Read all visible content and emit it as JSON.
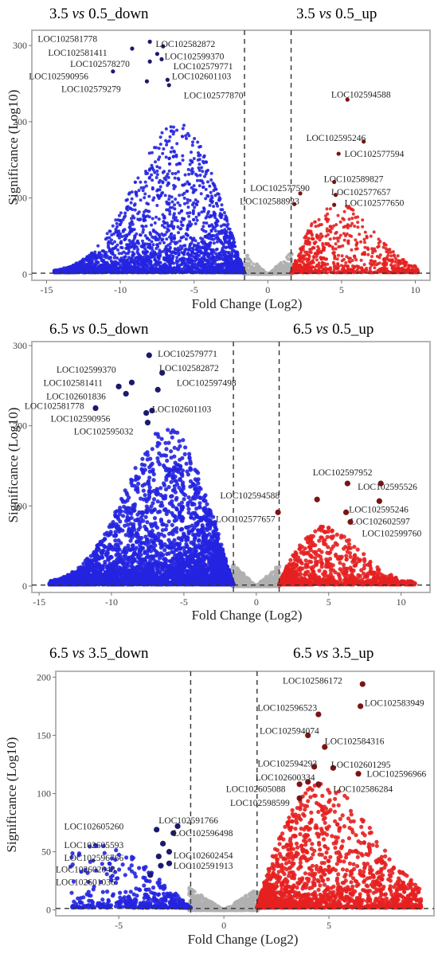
{
  "chart_data": [
    {
      "type": "scatter",
      "title_left": {
        "a": "3.5 ",
        "vs": "vs",
        "b": " 0.5_down"
      },
      "title_right": {
        "a": "3.5 ",
        "vs": "vs",
        "b": " 0.5_up"
      },
      "xlabel": "Fold Change (Log2)",
      "ylabel": "Significance (Log10)",
      "xlim": [
        -16,
        11
      ],
      "ylim": [
        -8,
        320
      ],
      "xticks": [
        -15,
        -10,
        -5,
        0,
        5,
        10
      ],
      "yticks": [
        0,
        100,
        200,
        300
      ],
      "fc_threshold": [
        -1.58,
        1.58
      ],
      "p_threshold": 1.3,
      "colors": {
        "down": "#2323e0",
        "up": "#e62020",
        "ns": "#b0b0b0",
        "labeled_down": "#1a1a6e",
        "labeled_up": "#7a1515"
      },
      "labeled_points": [
        {
          "label": "LOC102581778",
          "x": -8.0,
          "y": 305,
          "dir": "down",
          "lx": -15.6,
          "ly": 309
        },
        {
          "label": "LOC102582872",
          "x": -7.1,
          "y": 299,
          "dir": "down",
          "lx": -7.6,
          "ly": 302
        },
        {
          "label": "LOC102581411",
          "x": -9.2,
          "y": 296,
          "dir": "down",
          "lx": -14.9,
          "ly": 291
        },
        {
          "label": "LOC102599370",
          "x": -7.5,
          "y": 289,
          "dir": "down",
          "lx": -7.0,
          "ly": 286
        },
        {
          "label": "LOC102579771",
          "x": -7.2,
          "y": 282,
          "dir": "down",
          "lx": -6.4,
          "ly": 273
        },
        {
          "label": "LOC102578270",
          "x": -8.0,
          "y": 279,
          "dir": "down",
          "lx": -13.4,
          "ly": 276
        },
        {
          "label": "LOC102590956",
          "x": -10.5,
          "y": 266,
          "dir": "down",
          "lx": -16.2,
          "ly": 260
        },
        {
          "label": "LOC102601103",
          "x": -6.8,
          "y": 255,
          "dir": "down",
          "lx": -6.5,
          "ly": 260
        },
        {
          "label": "LOC102579279",
          "x": -8.2,
          "y": 253,
          "dir": "down",
          "lx": -14.0,
          "ly": 243
        },
        {
          "label": "LOC102577870",
          "x": -6.7,
          "y": 248,
          "dir": "down",
          "lx": -5.7,
          "ly": 235
        },
        {
          "label": "LOC102594588",
          "x": 5.4,
          "y": 229,
          "dir": "up",
          "lx": 4.3,
          "ly": 236
        },
        {
          "label": "LOC102595246",
          "x": 6.5,
          "y": 174,
          "dir": "up",
          "lx": 2.6,
          "ly": 179
        },
        {
          "label": "LOC102577594",
          "x": 4.8,
          "y": 158,
          "dir": "up",
          "lx": 5.2,
          "ly": 158
        },
        {
          "label": "LOC102589827",
          "x": 4.5,
          "y": 121,
          "dir": "up",
          "lx": 3.8,
          "ly": 125
        },
        {
          "label": "LOC102577590",
          "x": 2.2,
          "y": 106,
          "dir": "up",
          "lx": -1.2,
          "ly": 113
        },
        {
          "label": "LOC102577657",
          "x": 4.6,
          "y": 104,
          "dir": "up",
          "lx": 4.3,
          "ly": 108
        },
        {
          "label": "LOC102588923",
          "x": 1.8,
          "y": 92,
          "dir": "up",
          "lx": -1.9,
          "ly": 96
        },
        {
          "label": "LOC102577650",
          "x": 4.5,
          "y": 91,
          "dir": "up",
          "lx": 5.2,
          "ly": 94
        }
      ],
      "scatter_model": {
        "down_n": 2600,
        "up_n": 900,
        "ns_n": 520,
        "down_xmin": -14.5,
        "up_xmax": 10.2,
        "down_peak": 200,
        "up_peak": 95,
        "seed": 11
      }
    },
    {
      "type": "scatter",
      "title_left": {
        "a": "6.5 ",
        "vs": "vs",
        "b": " 0.5_down"
      },
      "title_right": {
        "a": "6.5 ",
        "vs": "vs",
        "b": " 0.5_up"
      },
      "xlabel": "Fold Change (Log2)",
      "ylabel": "Significance (Log10)",
      "xlim": [
        -15.5,
        12
      ],
      "ylim": [
        -8,
        305
      ],
      "xticks": [
        -15,
        -10,
        -5,
        0,
        5,
        10
      ],
      "yticks": [
        0,
        100,
        200,
        300
      ],
      "fc_threshold": [
        -1.58,
        1.58
      ],
      "p_threshold": 1.3,
      "colors": {
        "down": "#2323e0",
        "up": "#e62020",
        "ns": "#b0b0b0",
        "labeled_down": "#1a1a6e",
        "labeled_up": "#7a1515"
      },
      "labeled_points": [
        {
          "label": "LOC102579771",
          "x": -7.4,
          "y": 288,
          "dir": "down",
          "lx": -6.8,
          "ly": 290
        },
        {
          "label": "LOC102599370",
          "x": -8.6,
          "y": 254,
          "dir": "down",
          "lx": -13.8,
          "ly": 270
        },
        {
          "label": "LOC102582872",
          "x": -6.5,
          "y": 266,
          "dir": "down",
          "lx": -6.7,
          "ly": 272
        },
        {
          "label": "LOC102581411",
          "x": -9.5,
          "y": 249,
          "dir": "down",
          "lx": -14.7,
          "ly": 254
        },
        {
          "label": "LOC102597498",
          "x": -6.8,
          "y": 245,
          "dir": "down",
          "lx": -5.5,
          "ly": 254
        },
        {
          "label": "LOC102601836",
          "x": -9.0,
          "y": 240,
          "dir": "down",
          "lx": -14.5,
          "ly": 237
        },
        {
          "label": "LOC102581778",
          "x": -11.1,
          "y": 222,
          "dir": "down",
          "lx": -16.0,
          "ly": 225
        },
        {
          "label": "LOC102601103",
          "x": -7.2,
          "y": 219,
          "dir": "down",
          "lx": -7.2,
          "ly": 221
        },
        {
          "label": "LOC102590956",
          "x": -7.6,
          "y": 216,
          "dir": "down",
          "lx": -14.2,
          "ly": 209
        },
        {
          "label": "LOC102595032",
          "x": -7.5,
          "y": 204,
          "dir": "down",
          "lx": -12.6,
          "ly": 193
        },
        {
          "label": "LOC102597952",
          "x": 6.3,
          "y": 128,
          "dir": "up",
          "lx": 3.9,
          "ly": 142
        },
        {
          "label": "LOC102595526",
          "x": 8.6,
          "y": 128,
          "dir": "up",
          "lx": 7.0,
          "ly": 124
        },
        {
          "label": "LOC102594588",
          "x": 4.2,
          "y": 108,
          "dir": "up",
          "lx": -2.5,
          "ly": 113
        },
        {
          "label": "LOC102595246",
          "x": 8.5,
          "y": 106,
          "dir": "up",
          "lx": 6.4,
          "ly": 96
        },
        {
          "label": "LOC102577657",
          "x": 1.5,
          "y": 92,
          "dir": "up",
          "lx": -2.8,
          "ly": 84
        },
        {
          "label": "LOC102602597",
          "x": 6.2,
          "y": 92,
          "dir": "up",
          "lx": 6.5,
          "ly": 81
        },
        {
          "label": "LOC102599760",
          "x": 6.5,
          "y": 80,
          "dir": "up",
          "lx": 7.3,
          "ly": 66
        }
      ],
      "scatter_model": {
        "down_n": 3200,
        "up_n": 950,
        "ns_n": 550,
        "down_xmin": -14.3,
        "up_xmax": 11.0,
        "down_peak": 200,
        "up_peak": 75,
        "seed": 29
      }
    },
    {
      "type": "scatter",
      "title_left": {
        "a": "6.5 ",
        "vs": "vs",
        "b": " 3.5_down"
      },
      "title_right": {
        "a": "6.5 ",
        "vs": "vs",
        "b": " 3.5_up"
      },
      "xlabel": "Fold Change (Log2)",
      "ylabel": "Significance (Log10)",
      "xlim": [
        -8,
        10
      ],
      "ylim": [
        -5,
        205
      ],
      "xticks": [
        -5,
        0,
        5
      ],
      "yticks": [
        0,
        50,
        100,
        150,
        200
      ],
      "fc_threshold": [
        -1.58,
        1.58
      ],
      "p_threshold": 1.3,
      "colors": {
        "down": "#2323e0",
        "up": "#e62020",
        "ns": "#b0b0b0",
        "labeled_down": "#1a1a6e",
        "labeled_up": "#7a1515"
      },
      "labeled_points": [
        {
          "label": "LOC102586172",
          "x": 6.6,
          "y": 194,
          "dir": "up",
          "lx": 2.8,
          "ly": 197
        },
        {
          "label": "LOC102583949",
          "x": 6.5,
          "y": 175,
          "dir": "up",
          "lx": 6.7,
          "ly": 178
        },
        {
          "label": "LOC102596523",
          "x": 4.5,
          "y": 168,
          "dir": "up",
          "lx": 1.6,
          "ly": 174
        },
        {
          "label": "LOC102594074",
          "x": 4.0,
          "y": 150,
          "dir": "up",
          "lx": 1.7,
          "ly": 154
        },
        {
          "label": "LOC102584316",
          "x": 4.8,
          "y": 140,
          "dir": "up",
          "lx": 4.8,
          "ly": 145
        },
        {
          "label": "LOC102594293",
          "x": 4.3,
          "y": 123,
          "dir": "up",
          "lx": 1.6,
          "ly": 126
        },
        {
          "label": "LOC102601295",
          "x": 5.2,
          "y": 122,
          "dir": "up",
          "lx": 5.1,
          "ly": 125
        },
        {
          "label": "LOC102596966",
          "x": 6.4,
          "y": 117,
          "dir": "up",
          "lx": 6.8,
          "ly": 117
        },
        {
          "label": "LOC102600334",
          "x": 4.0,
          "y": 110,
          "dir": "up",
          "lx": 1.5,
          "ly": 114
        },
        {
          "label": "LOC102605088",
          "x": 3.6,
          "y": 108,
          "dir": "up",
          "lx": 0.1,
          "ly": 104
        },
        {
          "label": "LOC102586284",
          "x": 4.5,
          "y": 108,
          "dir": "up",
          "lx": 5.2,
          "ly": 104
        },
        {
          "label": "LOC102598599",
          "x": 3.6,
          "y": 96,
          "dir": "up",
          "lx": 0.3,
          "ly": 92
        },
        {
          "label": "LOC102605260",
          "x": -3.2,
          "y": 69,
          "dir": "down",
          "lx": -7.6,
          "ly": 72
        },
        {
          "label": "LOC102591766",
          "x": -2.2,
          "y": 72,
          "dir": "down",
          "lx": -3.1,
          "ly": 77
        },
        {
          "label": "LOC102596498",
          "x": -2.4,
          "y": 66,
          "dir": "down",
          "lx": -2.4,
          "ly": 66
        },
        {
          "label": "LOC102605593",
          "x": -2.9,
          "y": 57,
          "dir": "down",
          "lx": -7.6,
          "ly": 56
        },
        {
          "label": "LOC102602454",
          "x": -2.6,
          "y": 50,
          "dir": "down",
          "lx": -2.4,
          "ly": 47
        },
        {
          "label": "LOC102596766",
          "x": -3.1,
          "y": 46,
          "dir": "down",
          "lx": -7.6,
          "ly": 45
        },
        {
          "label": "LOC102591913",
          "x": -2.6,
          "y": 40,
          "dir": "down",
          "lx": -2.4,
          "ly": 38
        },
        {
          "label": "LOC102602048",
          "x": -3.0,
          "y": 38,
          "dir": "down",
          "lx": -8.0,
          "ly": 35
        },
        {
          "label": "LOC102601036",
          "x": -3.5,
          "y": 30,
          "dir": "down",
          "lx": -8.0,
          "ly": 24
        }
      ],
      "scatter_model": {
        "down_n": 380,
        "up_n": 1700,
        "ns_n": 650,
        "down_xmin": -7.3,
        "up_xmax": 9.4,
        "down_peak": 55,
        "up_peak": 110,
        "seed": 47
      }
    }
  ]
}
